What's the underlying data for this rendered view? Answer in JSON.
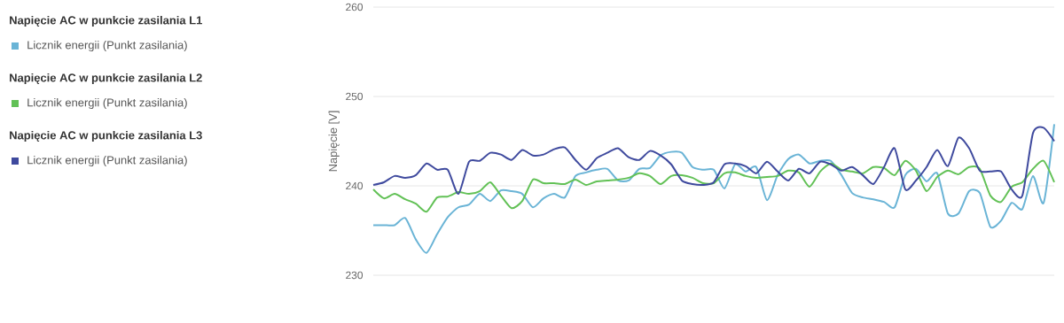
{
  "chart_data": {
    "type": "line",
    "ylabel": "Napięcie [V]",
    "ylim": [
      230,
      260
    ],
    "yticks": [
      230,
      240,
      250,
      260
    ],
    "grid": "y",
    "legend": "left",
    "marker": "none",
    "line_style": "solid",
    "annotations": [
      "Napięcie AC w punkcie zasilania L1",
      "Napięcie AC w punkcie zasilania L2",
      "Napięcie AC w punkcie zasilania L3"
    ],
    "categories": [
      null,
      null,
      null,
      null,
      null,
      null,
      null,
      null,
      null,
      null,
      null,
      null,
      null,
      null,
      null,
      null,
      null,
      null,
      null,
      null,
      null,
      null,
      null,
      null,
      null,
      null,
      null,
      null,
      null,
      null,
      null,
      null,
      null,
      null,
      null,
      null,
      null,
      null,
      null,
      null,
      null,
      null,
      null,
      null,
      null,
      null,
      null,
      null,
      null,
      null,
      null,
      null,
      null,
      null,
      null,
      null,
      null,
      null,
      null,
      null,
      null,
      null,
      null,
      null,
      null
    ],
    "series": [
      {
        "name": "Licznik energii (Punkt zasilania)",
        "color": "#6ab4d6",
        "values": [
          235.6,
          235.6,
          235.6,
          236.4,
          234,
          232.5,
          234.6,
          236.5,
          237.6,
          237.9,
          239.1,
          238.3,
          239.5,
          239.4,
          239.1,
          237.6,
          238.6,
          239.1,
          238.7,
          241.1,
          241.5,
          241.8,
          241.9,
          240.6,
          240.6,
          241.9,
          242,
          243.4,
          243.8,
          243.7,
          242.1,
          241.8,
          241.8,
          239.7,
          242.4,
          241.6,
          242.1,
          238.4,
          241.2,
          243,
          243.5,
          242.5,
          242.8,
          242.8,
          241.2,
          239.2,
          238.7,
          238.5,
          238.2,
          237.6,
          241.2,
          241.9,
          240.5,
          241.4,
          236.9,
          236.9,
          239.4,
          239.2,
          235.4,
          236.1,
          238.1,
          237.4,
          241.1,
          238.1,
          246.9
        ]
      },
      {
        "name": "Licznik energii (Punkt zasilania)",
        "color": "#62c156",
        "values": [
          239.6,
          238.6,
          239.1,
          238.5,
          238,
          237.1,
          238.7,
          238.8,
          239.3,
          239.1,
          239.4,
          240.4,
          238.9,
          237.5,
          238.3,
          240.7,
          240.3,
          240.3,
          240.2,
          240.7,
          240.1,
          240.5,
          240.6,
          240.7,
          240.9,
          241.4,
          241.1,
          240.2,
          241.1,
          241.2,
          240.9,
          240.3,
          240.3,
          241.4,
          241.5,
          241.1,
          240.9,
          241,
          241.1,
          241.7,
          241.5,
          239.9,
          241.6,
          242.5,
          241.8,
          241.6,
          241.4,
          242.1,
          242,
          241.2,
          242.8,
          241.7,
          239.4,
          241,
          241.7,
          241.3,
          242.1,
          241.9,
          238.9,
          238.2,
          239.9,
          240.4,
          241.9,
          242.8,
          240.4
        ]
      },
      {
        "name": "Licznik energii (Punkt zasilania)",
        "color": "#3f4a9e",
        "values": [
          240.1,
          240.4,
          241.1,
          240.9,
          241.2,
          242.5,
          241.8,
          241.8,
          239.1,
          242.7,
          242.8,
          243.7,
          243.5,
          242.9,
          244,
          243.4,
          243.5,
          244.1,
          244.3,
          242.9,
          241.8,
          243.1,
          243.7,
          244.2,
          243.2,
          242.9,
          243.9,
          243.4,
          242.4,
          240.6,
          240.2,
          240.1,
          240.4,
          242.4,
          242.5,
          242.2,
          241.4,
          242.7,
          241.6,
          240.6,
          241.9,
          241.4,
          242.7,
          242.4,
          241.7,
          242.1,
          241.2,
          240.2,
          242.1,
          244.2,
          239.6,
          240.6,
          242.1,
          244,
          242.2,
          245.4,
          244.2,
          241.7,
          241.6,
          241.6,
          239.6,
          238.9,
          245.9,
          246.5,
          245
        ]
      }
    ]
  }
}
